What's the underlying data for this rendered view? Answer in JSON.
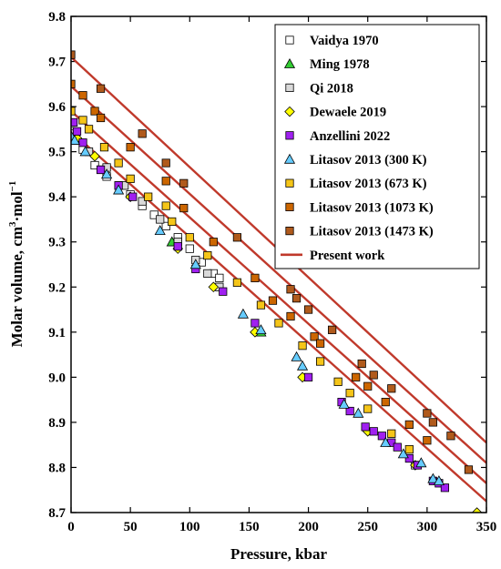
{
  "chart_data": {
    "type": "scatter",
    "xlabel": "Pressure, kbar",
    "ylabel": "Molar volume, cm",
    "ylabel_sup": "3",
    "ylabel_mid": "·mol",
    "ylabel_sup2": "−1",
    "xlim": [
      0,
      350
    ],
    "ylim": [
      8.7,
      9.8
    ],
    "xticks": [
      "0",
      "50",
      "100",
      "150",
      "200",
      "250",
      "300",
      "350"
    ],
    "yticks": [
      "8.7",
      "8.8",
      "8.9",
      "9.0",
      "9.1",
      "9.2",
      "9.3",
      "9.4",
      "9.5",
      "9.6",
      "9.7",
      "9.8"
    ],
    "legend_position": "top-right",
    "grid": false,
    "series": [
      {
        "name": "Vaidya 1970",
        "marker": "square",
        "color": "#ffffff",
        "points": [
          [
            0,
            9.545
          ],
          [
            10,
            9.505
          ],
          [
            20,
            9.47
          ],
          [
            25,
            9.46
          ],
          [
            30,
            9.445
          ],
          [
            40,
            9.425
          ],
          [
            50,
            9.405
          ],
          [
            60,
            9.38
          ],
          [
            70,
            9.36
          ],
          [
            80,
            9.335
          ],
          [
            90,
            9.31
          ],
          [
            100,
            9.285
          ],
          [
            110,
            9.255
          ],
          [
            120,
            9.23
          ],
          [
            125,
            9.22
          ],
          [
            290,
            8.805
          ]
        ]
      },
      {
        "name": "Ming 1978",
        "marker": "triangle",
        "color": "#33cc33",
        "points": [
          [
            6,
            9.525
          ],
          [
            85,
            9.3
          ],
          [
            160,
            9.1
          ]
        ]
      },
      {
        "name": "Qi 2018",
        "marker": "square",
        "color": "#d9d9d9",
        "points": [
          [
            0,
            9.54
          ],
          [
            15,
            9.5
          ],
          [
            30,
            9.465
          ],
          [
            45,
            9.425
          ],
          [
            60,
            9.39
          ],
          [
            75,
            9.35
          ],
          [
            90,
            9.3
          ],
          [
            105,
            9.26
          ],
          [
            115,
            9.23
          ],
          [
            125,
            9.2
          ]
        ]
      },
      {
        "name": "Dewaele 2019",
        "marker": "diamond",
        "color": "#ffff00",
        "points": [
          [
            5,
            9.53
          ],
          [
            20,
            9.49
          ],
          [
            50,
            9.4
          ],
          [
            90,
            9.285
          ],
          [
            120,
            9.2
          ],
          [
            155,
            9.1
          ],
          [
            195,
            9.0
          ],
          [
            250,
            8.88
          ],
          [
            290,
            8.805
          ],
          [
            342,
            8.7
          ]
        ]
      },
      {
        "name": "Anzellini 2022",
        "marker": "square",
        "color": "#a020f0",
        "points": [
          [
            2,
            9.565
          ],
          [
            5,
            9.545
          ],
          [
            10,
            9.52
          ],
          [
            25,
            9.46
          ],
          [
            40,
            9.425
          ],
          [
            52,
            9.4
          ],
          [
            90,
            9.29
          ],
          [
            105,
            9.24
          ],
          [
            128,
            9.19
          ],
          [
            155,
            9.12
          ],
          [
            200,
            9.0
          ],
          [
            228,
            8.945
          ],
          [
            235,
            8.925
          ],
          [
            248,
            8.89
          ],
          [
            255,
            8.88
          ],
          [
            262,
            8.87
          ],
          [
            270,
            8.855
          ],
          [
            275,
            8.845
          ],
          [
            285,
            8.82
          ],
          [
            292,
            8.805
          ],
          [
            305,
            8.77
          ],
          [
            310,
            8.765
          ],
          [
            315,
            8.755
          ]
        ]
      },
      {
        "name": "Litasov 2013 (300 K)",
        "marker": "triangle",
        "color": "#66ccff",
        "points": [
          [
            0,
            9.535
          ],
          [
            3,
            9.525
          ],
          [
            12,
            9.5
          ],
          [
            30,
            9.45
          ],
          [
            40,
            9.415
          ],
          [
            75,
            9.325
          ],
          [
            105,
            9.25
          ],
          [
            145,
            9.14
          ],
          [
            160,
            9.105
          ],
          [
            190,
            9.045
          ],
          [
            195,
            9.025
          ],
          [
            230,
            8.94
          ],
          [
            242,
            8.92
          ],
          [
            265,
            8.855
          ],
          [
            280,
            8.83
          ],
          [
            295,
            8.81
          ],
          [
            305,
            8.775
          ],
          [
            310,
            8.77
          ]
        ]
      },
      {
        "name": "Litasov 2013 (673 K)",
        "marker": "square",
        "color": "#f5c518",
        "points": [
          [
            0,
            9.59
          ],
          [
            10,
            9.57
          ],
          [
            15,
            9.55
          ],
          [
            28,
            9.51
          ],
          [
            40,
            9.475
          ],
          [
            50,
            9.44
          ],
          [
            65,
            9.4
          ],
          [
            80,
            9.38
          ],
          [
            85,
            9.345
          ],
          [
            100,
            9.31
          ],
          [
            115,
            9.27
          ],
          [
            140,
            9.21
          ],
          [
            160,
            9.16
          ],
          [
            175,
            9.12
          ],
          [
            195,
            9.07
          ],
          [
            210,
            9.035
          ],
          [
            225,
            8.99
          ],
          [
            235,
            8.965
          ],
          [
            250,
            8.93
          ],
          [
            270,
            8.875
          ],
          [
            285,
            8.84
          ]
        ]
      },
      {
        "name": "Litasov 2013 (1073 K)",
        "marker": "square",
        "color": "#cc6600",
        "points": [
          [
            0,
            9.65
          ],
          [
            10,
            9.625
          ],
          [
            20,
            9.59
          ],
          [
            25,
            9.575
          ],
          [
            50,
            9.51
          ],
          [
            80,
            9.435
          ],
          [
            95,
            9.375
          ],
          [
            120,
            9.3
          ],
          [
            155,
            9.22
          ],
          [
            170,
            9.17
          ],
          [
            185,
            9.135
          ],
          [
            205,
            9.09
          ],
          [
            210,
            9.075
          ],
          [
            240,
            9.0
          ],
          [
            250,
            8.98
          ],
          [
            265,
            8.945
          ],
          [
            285,
            8.895
          ],
          [
            300,
            8.86
          ]
        ]
      },
      {
        "name": "Litasov 2013 (1473 K)",
        "marker": "square",
        "color": "#b05a1c",
        "points": [
          [
            0,
            9.715
          ],
          [
            25,
            9.64
          ],
          [
            60,
            9.54
          ],
          [
            80,
            9.475
          ],
          [
            95,
            9.43
          ],
          [
            140,
            9.31
          ],
          [
            185,
            9.195
          ],
          [
            190,
            9.175
          ],
          [
            200,
            9.15
          ],
          [
            220,
            9.105
          ],
          [
            245,
            9.03
          ],
          [
            255,
            9.005
          ],
          [
            270,
            8.975
          ],
          [
            300,
            8.92
          ],
          [
            305,
            8.9
          ],
          [
            320,
            8.87
          ],
          [
            335,
            8.795
          ]
        ]
      },
      {
        "name": "Present work",
        "marker": "line",
        "color": "#c0392b",
        "lines": [
          [
            [
              0,
              9.545
            ],
            [
              350,
              8.725
            ]
          ],
          [
            [
              0,
              9.59
            ],
            [
              350,
              8.765
            ]
          ],
          [
            [
              0,
              9.645
            ],
            [
              350,
              8.81
            ]
          ],
          [
            [
              0,
              9.71
            ],
            [
              350,
              8.855
            ]
          ]
        ]
      }
    ]
  }
}
